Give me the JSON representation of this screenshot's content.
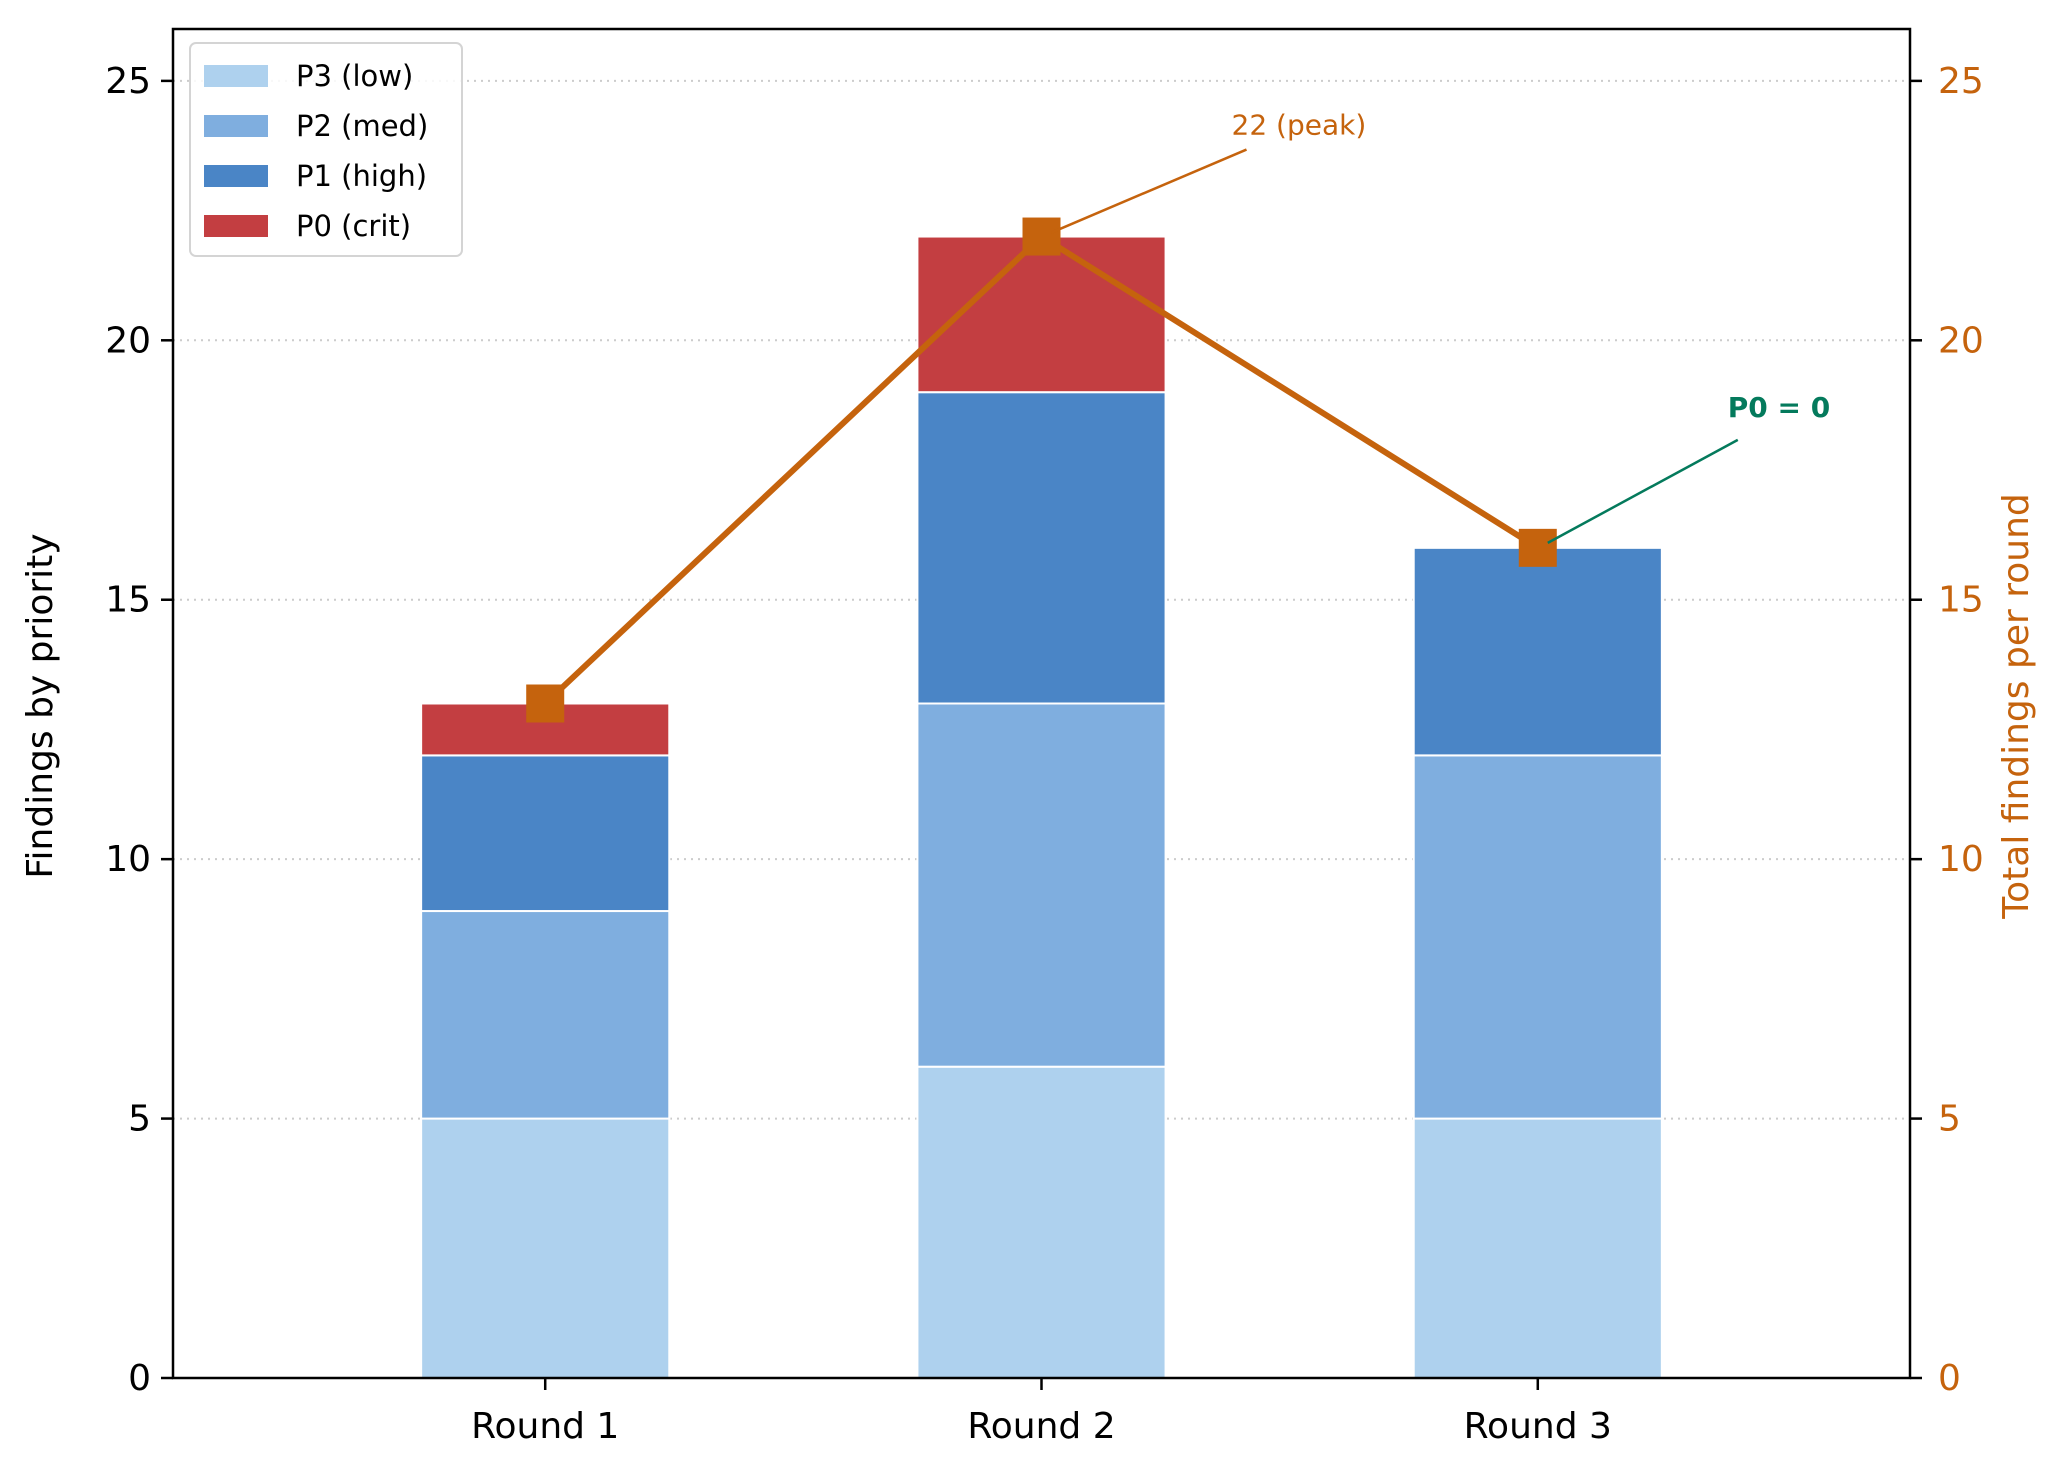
{
  "chart_data": {
    "type": "bar",
    "stacked": true,
    "categories": [
      "Round 1",
      "Round 2",
      "Round 3"
    ],
    "series": [
      {
        "name": "P3 (low)",
        "values": [
          5,
          6,
          5
        ],
        "color": "#aed1ee"
      },
      {
        "name": "P2 (med)",
        "values": [
          4,
          7,
          7
        ],
        "color": "#7faedf"
      },
      {
        "name": "P1 (high)",
        "values": [
          3,
          6,
          4
        ],
        "color": "#4a85c6"
      },
      {
        "name": "P0 (crit)",
        "values": [
          1,
          3,
          0
        ],
        "color": "#c33e41"
      }
    ],
    "line": {
      "name": "Total findings per round",
      "values": [
        13,
        22,
        16
      ],
      "color": "#c5630d",
      "marker": "square"
    },
    "ylabel": "Findings by priority",
    "y2label": "Total findings per round",
    "ylim": [
      0,
      26
    ],
    "y2lim": [
      0,
      26
    ],
    "yticks": [
      0,
      5,
      10,
      15,
      20,
      25
    ],
    "grid": "horizontal-dotted",
    "legend_position": "top-left",
    "annotations": [
      {
        "text": "22 (peak)",
        "category": "Round 2",
        "value": 22,
        "color": "#c5630d"
      },
      {
        "text": "P0 = 0",
        "category": "Round 3",
        "value": 16,
        "color": "#047a5c"
      }
    ]
  }
}
